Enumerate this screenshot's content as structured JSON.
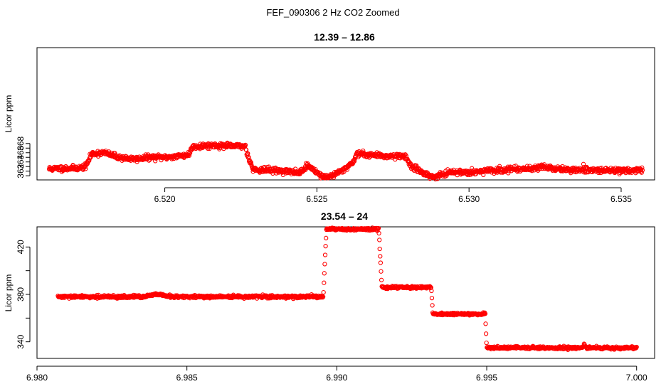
{
  "figure_title": "FEF_090306  2 Hz CO2 Zoomed",
  "chart_data": [
    {
      "type": "scatter",
      "title": "12.39 – 12.86",
      "xlabel": "",
      "ylabel": "Licor ppm",
      "color": "#ff0000",
      "marker": "open-circle",
      "xlim": [
        6.5158,
        6.5361
      ],
      "ylim": [
        360.1,
        388.8
      ],
      "xticks": [
        "6.520",
        "6.525",
        "6.530",
        "6.535"
      ],
      "xtick_values": [
        6.52,
        6.525,
        6.53,
        6.535
      ],
      "yticks": [
        "362",
        "364",
        "366",
        "368"
      ],
      "ytick_values": [
        362,
        364,
        366,
        368
      ],
      "x_range": [
        6.5162,
        6.5357
      ],
      "trace": [
        [
          6.5162,
          362.5
        ],
        [
          6.5172,
          362.7
        ],
        [
          6.5174,
          363.0
        ],
        [
          6.5176,
          365.8
        ],
        [
          6.518,
          366.0
        ],
        [
          6.5185,
          365.0
        ],
        [
          6.519,
          364.6
        ],
        [
          6.5195,
          365.0
        ],
        [
          6.52,
          365.0
        ],
        [
          6.5205,
          365.3
        ],
        [
          6.5208,
          365.6
        ],
        [
          6.5209,
          367.3
        ],
        [
          6.5215,
          367.6
        ],
        [
          6.522,
          367.5
        ],
        [
          6.52265,
          367.4
        ],
        [
          6.5227,
          366.0
        ],
        [
          6.5229,
          362.4
        ],
        [
          6.5235,
          362.2
        ],
        [
          6.524,
          362.0
        ],
        [
          6.5244,
          361.6
        ],
        [
          6.5247,
          363.2
        ],
        [
          6.525,
          361.8
        ],
        [
          6.5252,
          360.7
        ],
        [
          6.5255,
          361.0
        ],
        [
          6.5258,
          362.0
        ],
        [
          6.5262,
          364.0
        ],
        [
          6.5263,
          365.8
        ],
        [
          6.5267,
          365.6
        ],
        [
          6.5272,
          365.3
        ],
        [
          6.5279,
          365.3
        ],
        [
          6.5281,
          363.0
        ],
        [
          6.5284,
          362.0
        ],
        [
          6.5288,
          360.7
        ],
        [
          6.5291,
          361.2
        ],
        [
          6.5295,
          361.8
        ],
        [
          6.53,
          361.8
        ],
        [
          6.5305,
          362.0
        ],
        [
          6.531,
          362.2
        ],
        [
          6.5315,
          362.5
        ],
        [
          6.532,
          362.6
        ],
        [
          6.5325,
          362.9
        ],
        [
          6.5328,
          362.6
        ],
        [
          6.5332,
          362.3
        ],
        [
          6.534,
          362.2
        ],
        [
          6.535,
          362.2
        ],
        [
          6.5357,
          362.2
        ]
      ]
    },
    {
      "type": "scatter",
      "title": "23.54 – 24",
      "xlabel": "",
      "ylabel": "Licor ppm",
      "color": "#ff0000",
      "marker": "open-circle",
      "xlim": [
        6.98,
        7.0006
      ],
      "ylim": [
        326,
        437
      ],
      "xticks": [
        "6.980",
        "6.985",
        "6.990",
        "6.995",
        "7.000"
      ],
      "xtick_values": [
        6.98,
        6.985,
        6.99,
        6.995,
        7.0
      ],
      "yticks": [
        "340",
        "380",
        "420"
      ],
      "ytick_values": [
        340,
        380,
        420
      ],
      "x_range": [
        6.9807,
        7.0
      ],
      "trace": [
        [
          6.9807,
          378.0
        ],
        [
          6.9835,
          378.0
        ],
        [
          6.984,
          380.0
        ],
        [
          6.9845,
          378.0
        ],
        [
          6.98955,
          378.0
        ],
        [
          6.98965,
          435.0
        ],
        [
          6.9914,
          435.0
        ],
        [
          6.9915,
          386.0
        ],
        [
          6.99315,
          386.0
        ],
        [
          6.9932,
          363.5
        ],
        [
          6.99495,
          363.5
        ],
        [
          6.995,
          335.0
        ],
        [
          6.9982,
          335.0
        ],
        [
          6.99825,
          338.0
        ],
        [
          6.9983,
          335.0
        ],
        [
          7.0,
          335.0
        ]
      ]
    }
  ]
}
